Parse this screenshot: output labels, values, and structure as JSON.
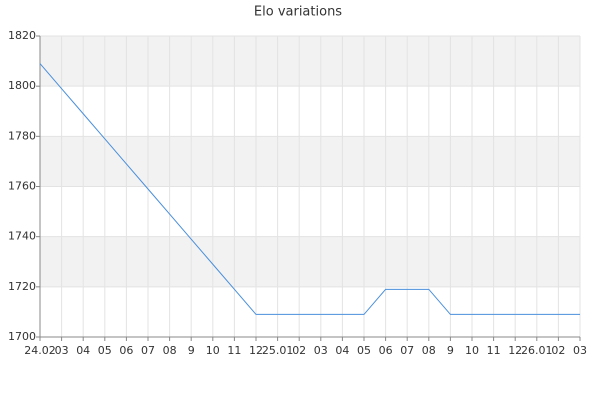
{
  "chart_data": {
    "type": "line",
    "title": "Elo variations",
    "categories": [
      "24.02",
      "03",
      "04",
      "05",
      "06",
      "07",
      "08",
      "9",
      "10",
      "11",
      "12",
      "25.01",
      "02",
      "03",
      "04",
      "05",
      "06",
      "07",
      "08",
      "9",
      "10",
      "11",
      "12",
      "26.01",
      "02",
      "03"
    ],
    "series": [
      {
        "color": "#4a8fdc",
        "values": [
          1809,
          1799,
          1789,
          1779,
          1769,
          1759,
          1749,
          1739,
          1729,
          1719,
          1709,
          1709,
          1709,
          1709,
          1709,
          1709,
          1719,
          1719,
          1719,
          1709,
          1709,
          1709,
          1709,
          1709,
          1709,
          1709
        ]
      }
    ],
    "ylim": [
      1700,
      1820
    ],
    "yticks": [
      1700,
      1720,
      1740,
      1760,
      1780,
      1800,
      1820
    ],
    "grid": true
  }
}
